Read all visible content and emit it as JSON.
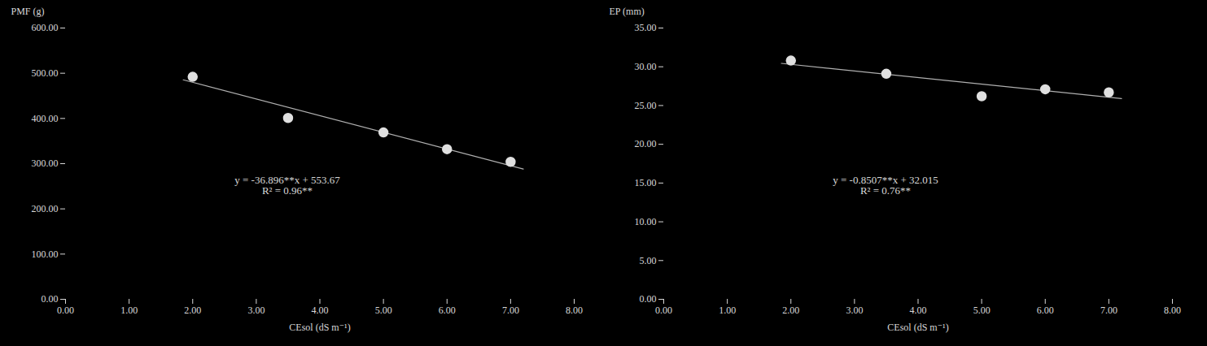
{
  "chart_data": [
    {
      "type": "scatter",
      "x_label": "CEsol (dS m⁻¹)",
      "y_label": "PMF (g)",
      "xlim": [
        0.0,
        8.0
      ],
      "ylim": [
        0.0,
        600.0
      ],
      "xticks": [
        {
          "value": 0.0,
          "label": "0.00"
        },
        {
          "value": 1.0,
          "label": "1.00"
        },
        {
          "value": 2.0,
          "label": "2.00"
        },
        {
          "value": 3.0,
          "label": "3.00"
        },
        {
          "value": 4.0,
          "label": "4.00"
        },
        {
          "value": 5.0,
          "label": "5.00"
        },
        {
          "value": 6.0,
          "label": "6.00"
        },
        {
          "value": 7.0,
          "label": "7.00"
        },
        {
          "value": 8.0,
          "label": "8.00"
        }
      ],
      "yticks": [
        {
          "value": 0.0,
          "label": "0.00"
        },
        {
          "value": 100.0,
          "label": "100.00"
        },
        {
          "value": 200.0,
          "label": "200.00"
        },
        {
          "value": 300.0,
          "label": "300.00"
        },
        {
          "value": 400.0,
          "label": "400.00"
        },
        {
          "value": 500.0,
          "label": "500.00"
        },
        {
          "value": 600.0,
          "label": "600.00"
        }
      ],
      "grid": false,
      "series": [
        {
          "type": "line",
          "color": "#b0b0b0",
          "x": [
            1.85,
            7.2
          ],
          "values": [
            485.4124,
            288.0188
          ]
        },
        {
          "type": "scatter",
          "color": "#e0e0e0",
          "marker": "circle",
          "x": [
            2.0,
            3.5,
            5.0,
            6.0,
            7.0
          ],
          "values": [
            492.0,
            401.0,
            369.0,
            332.0,
            304.0
          ]
        }
      ],
      "annotations": [
        "y = -36.896**x + 553.67",
        "R² = 0.96**"
      ]
    },
    {
      "type": "scatter",
      "x_label": "CEsol (dS m⁻¹)",
      "y_label": "EP (mm)",
      "xlim": [
        0.0,
        8.0
      ],
      "ylim": [
        0.0,
        35.0
      ],
      "xticks": [
        {
          "value": 0.0,
          "label": "0.00"
        },
        {
          "value": 1.0,
          "label": "1.00"
        },
        {
          "value": 2.0,
          "label": "2.00"
        },
        {
          "value": 3.0,
          "label": "3.00"
        },
        {
          "value": 4.0,
          "label": "4.00"
        },
        {
          "value": 5.0,
          "label": "5.00"
        },
        {
          "value": 6.0,
          "label": "6.00"
        },
        {
          "value": 7.0,
          "label": "7.00"
        },
        {
          "value": 8.0,
          "label": "8.00"
        }
      ],
      "yticks": [
        {
          "value": 0.0,
          "label": "0.00"
        },
        {
          "value": 5.0,
          "label": "5.00"
        },
        {
          "value": 10.0,
          "label": "10.00"
        },
        {
          "value": 15.0,
          "label": "15.00"
        },
        {
          "value": 20.0,
          "label": "20.00"
        },
        {
          "value": 25.0,
          "label": "25.00"
        },
        {
          "value": 30.0,
          "label": "30.00"
        },
        {
          "value": 35.0,
          "label": "35.00"
        }
      ],
      "grid": false,
      "series": [
        {
          "type": "line",
          "color": "#b0b0b0",
          "x": [
            1.85,
            7.2
          ],
          "values": [
            30.441205,
            25.88996
          ]
        },
        {
          "type": "scatter",
          "color": "#e0e0e0",
          "marker": "circle",
          "x": [
            2.0,
            3.5,
            5.0,
            6.0,
            7.0
          ],
          "values": [
            30.8,
            29.1,
            26.2,
            27.1,
            26.7
          ]
        }
      ],
      "annotations": [
        "y = -0.8507**x + 32.015",
        "R² = 0.76**"
      ]
    }
  ]
}
